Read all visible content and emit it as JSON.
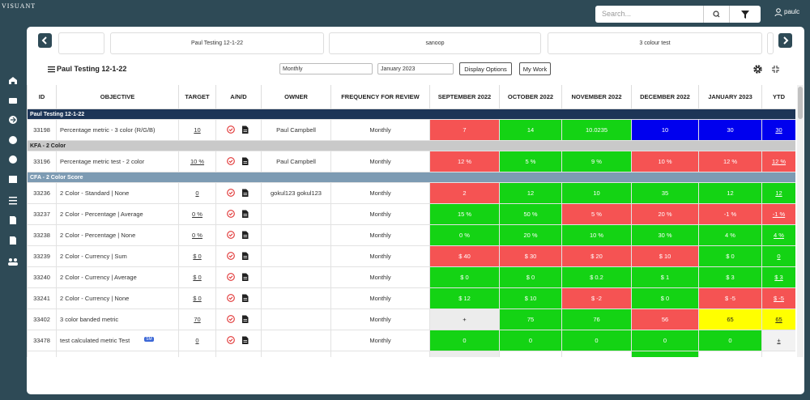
{
  "header": {
    "logo": "VISUANT",
    "search_placeholder": "Search...",
    "user": "paulc"
  },
  "tabs": [
    "Paul Testing 12-1-22",
    "sanoop",
    "3 colour test"
  ],
  "toolbar": {
    "title": "Paul Testing 12-1-22",
    "frequency": "Monthly",
    "period": "January 2023",
    "buttons": [
      "Display Options",
      "My Work"
    ]
  },
  "table": {
    "columns": [
      "ID",
      "OBJECTIVE",
      "TARGET",
      "A/N/D",
      "OWNER",
      "FREQUENCY FOR REVIEW",
      "SEPTEMBER 2022",
      "OCTOBER 2022",
      "NOVEMBER 2022",
      "DECEMBER 2022",
      "JANUARY 2023",
      "YTD"
    ],
    "rows": [
      {
        "group": "Paul Testing 12-1-22",
        "color": "#1d3557"
      },
      {
        "id": 33198,
        "objective": "Percentage metric - 3 color (R/G/B)",
        "target": "10",
        "owner": "Paul Campbell",
        "frequency": "Monthly",
        "cells": [
          {
            "text": "7",
            "color": "#f55353"
          },
          {
            "text": "14",
            "color": "#14d314"
          },
          {
            "text": "10.0235",
            "color": "#14d314"
          },
          {
            "text": "10",
            "color": "#0000ee"
          },
          {
            "text": "30",
            "color": "#0000ee"
          }
        ],
        "ytd": {
          "text": "30",
          "color": "#0000ee"
        }
      },
      {
        "group": "KFA - 2 Color",
        "color": "#c9c9c9"
      },
      {
        "id": 33196,
        "objective": "Percentage metric test - 2 color",
        "target": "10 %",
        "owner": "Paul Campbell",
        "frequency": "Monthly",
        "cells": [
          {
            "text": "12 %",
            "color": "#f55353"
          },
          {
            "text": "5 %",
            "color": "#14d314"
          },
          {
            "text": "9 %",
            "color": "#14d314"
          },
          {
            "text": "10 %",
            "color": "#f55353"
          },
          {
            "text": "12 %",
            "color": "#f55353"
          }
        ],
        "ytd": {
          "text": "12 %",
          "color": "#f55353"
        }
      },
      {
        "group": "CFA - 2 Color Score",
        "color": "#7d9bb3"
      },
      {
        "id": 33236,
        "objective": "2 Color - Standard | None",
        "target": "0",
        "owner": "gokul123 gokul123",
        "frequency": "Monthly",
        "cells": [
          {
            "text": "2",
            "color": "#f55353"
          },
          {
            "text": "12",
            "color": "#14d314"
          },
          {
            "text": "10",
            "color": "#14d314"
          },
          {
            "text": "35",
            "color": "#14d314"
          },
          {
            "text": "12",
            "color": "#14d314"
          }
        ],
        "ytd": {
          "text": "12",
          "color": "#14d314"
        }
      },
      {
        "id": 33237,
        "objective": "2 Color - Percentage | Average",
        "target": "0 %",
        "frequency": "Monthly",
        "cells": [
          {
            "text": "15 %",
            "color": "#14d314"
          },
          {
            "text": "50 %",
            "color": "#14d314"
          },
          {
            "text": "5 %",
            "color": "#f55353"
          },
          {
            "text": "20 %",
            "color": "#f55353"
          },
          {
            "text": "-1 %",
            "color": "#f55353"
          }
        ],
        "ytd": {
          "text": "-1 %",
          "color": "#f55353"
        }
      },
      {
        "id": 33238,
        "objective": "2 Color - Percentage | None",
        "target": "0 %",
        "frequency": "Monthly",
        "cells": [
          {
            "text": "0 %",
            "color": "#14d314"
          },
          {
            "text": "20 %",
            "color": "#14d314"
          },
          {
            "text": "10 %",
            "color": "#14d314"
          },
          {
            "text": "30 %",
            "color": "#14d314"
          },
          {
            "text": "4 %",
            "color": "#14d314"
          }
        ],
        "ytd": {
          "text": "4 %",
          "color": "#14d314"
        }
      },
      {
        "id": 33239,
        "objective": "2 Color - Currency | Sum",
        "target": "$ 0",
        "frequency": "Monthly",
        "cells": [
          {
            "text": "$ 40",
            "color": "#f55353"
          },
          {
            "text": "$ 30",
            "color": "#f55353"
          },
          {
            "text": "$ 20",
            "color": "#f55353"
          },
          {
            "text": "$ 10",
            "color": "#f55353"
          },
          {
            "text": "$ 0",
            "color": "#14d314"
          }
        ],
        "ytd": {
          "text": "0",
          "color": "#14d314"
        }
      },
      {
        "id": 33240,
        "objective": "2 Color - Currency | Average",
        "target": "$ 0",
        "frequency": "Monthly",
        "cells": [
          {
            "text": "$ 0",
            "color": "#14d314"
          },
          {
            "text": "$ 0",
            "color": "#14d314"
          },
          {
            "text": "$ 0.2",
            "color": "#14d314"
          },
          {
            "text": "$ 1",
            "color": "#14d314"
          },
          {
            "text": "$ 3",
            "color": "#14d314"
          }
        ],
        "ytd": {
          "text": "$ 3",
          "color": "#14d314"
        }
      },
      {
        "id": 33241,
        "objective": "2 Color - Currency | None",
        "target": "$ 0",
        "frequency": "Monthly",
        "cells": [
          {
            "text": "$ 12",
            "color": "#14d314"
          },
          {
            "text": "$ 10",
            "color": "#14d314"
          },
          {
            "text": "$ -2",
            "color": "#f55353"
          },
          {
            "text": "$ 0",
            "color": "#14d314"
          },
          {
            "text": "$ -5",
            "color": "#f55353"
          }
        ],
        "ytd": {
          "text": "$ -5",
          "color": "#f55353"
        }
      },
      {
        "id": 33402,
        "objective": "3 color banded metric",
        "target": "70",
        "frequency": "Monthly",
        "cells": [
          {
            "text": "+",
            "color": "#ececec"
          },
          {
            "text": "75",
            "color": "#14d314"
          },
          {
            "text": "76",
            "color": "#14d314"
          },
          {
            "text": "56",
            "color": "#f55353"
          },
          {
            "text": "65",
            "color": "#ffff00"
          }
        ],
        "ytd": {
          "text": "65",
          "color": "#ffff00"
        }
      },
      {
        "id": 33478,
        "objective": "test calculated metric Test",
        "badge": "SM",
        "target": "0",
        "frequency": "Monthly",
        "cells": [
          {
            "text": "0",
            "color": "#14d314"
          },
          {
            "text": "0",
            "color": "#14d314"
          },
          {
            "text": "0",
            "color": "#14d314"
          },
          {
            "text": "0",
            "color": "#14d314"
          },
          {
            "text": "0",
            "color": "#14d314"
          }
        ],
        "ytd": {
          "text": "±",
          "color": "#f2f2f2"
        }
      }
    ]
  }
}
